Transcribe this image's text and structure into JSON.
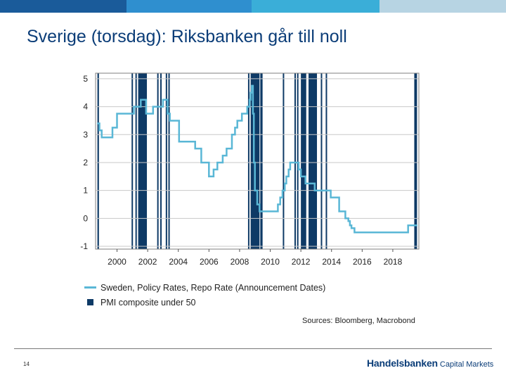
{
  "slide": {
    "title": "Sverige (torsdag): Riksbanken går till noll",
    "page_number": "14",
    "sources": "Sources: Bloomberg, Macrobond",
    "logo_main": "Handelsbanken",
    "logo_sub": "Capital Markets",
    "top_bar_colors": [
      "#1a5b9a",
      "#2f8fcf",
      "#3aaed8",
      "#b7d4e3"
    ]
  },
  "chart_data": {
    "type": "line",
    "title": "",
    "xlabel": "",
    "ylabel": "",
    "xlim": [
      1998.6,
      2019.7
    ],
    "ylim": [
      -1.1,
      5.2
    ],
    "y_ticks": [
      5,
      4,
      3,
      2,
      1,
      0,
      -1
    ],
    "y_tick_labels": [
      "5",
      "4",
      "3",
      "2",
      "1",
      "0",
      "-1"
    ],
    "x_ticks": [
      2000,
      2002,
      2004,
      2006,
      2008,
      2010,
      2012,
      2014,
      2016,
      2018
    ],
    "x_tick_labels": [
      "2000",
      "2002",
      "2004",
      "2006",
      "2008",
      "2010",
      "2012",
      "2014",
      "2016",
      "2018"
    ],
    "grid": true,
    "colors": {
      "line": "#5ab7d6",
      "bars": "#0e3a66",
      "grid": "#c8c8c8"
    },
    "series": [
      {
        "name": "Sweden, Policy Rates, Repo Rate (Announcement Dates)",
        "type": "step",
        "x": [
          1998.7,
          1998.85,
          1999.0,
          1999.7,
          2000.0,
          2000.25,
          2000.5,
          2001.1,
          2001.4,
          2001.55,
          2001.7,
          2001.9,
          2002.2,
          2002.35,
          2003.0,
          2003.15,
          2003.3,
          2003.45,
          2004.05,
          2004.2,
          2005.1,
          2005.5,
          2006.0,
          2006.15,
          2006.3,
          2006.55,
          2006.7,
          2006.9,
          2007.15,
          2007.5,
          2007.7,
          2007.85,
          2008.15,
          2008.5,
          2008.65,
          2008.72,
          2008.8,
          2008.87,
          2008.93,
          2009.0,
          2009.1,
          2009.15,
          2009.3,
          2009.5,
          2010.5,
          2010.65,
          2010.8,
          2010.95,
          2011.05,
          2011.2,
          2011.3,
          2011.45,
          2011.85,
          2012.0,
          2012.15,
          2012.3,
          2012.9,
          2013.1,
          2013.95,
          2014.5,
          2014.9,
          2015.1,
          2015.2,
          2015.3,
          2015.5,
          2019.0,
          2019.6
        ],
        "y": [
          3.4,
          3.15,
          2.9,
          3.25,
          3.75,
          3.75,
          3.75,
          4.0,
          4.0,
          4.25,
          4.25,
          3.75,
          3.75,
          4.0,
          4.25,
          4.25,
          3.75,
          3.5,
          2.75,
          2.75,
          2.5,
          2.0,
          1.5,
          1.5,
          1.75,
          2.0,
          2.0,
          2.25,
          2.5,
          3.0,
          3.25,
          3.5,
          3.75,
          4.0,
          4.25,
          4.5,
          4.75,
          3.75,
          2.0,
          1.0,
          1.0,
          0.5,
          0.25,
          0.25,
          0.5,
          0.75,
          1.0,
          1.25,
          1.5,
          1.75,
          2.0,
          2.0,
          1.75,
          1.5,
          1.5,
          1.25,
          1.0,
          1.0,
          0.75,
          0.25,
          0.0,
          -0.1,
          -0.25,
          -0.35,
          -0.5,
          -0.25,
          -0.25
        ]
      },
      {
        "name": "PMI composite under 50",
        "type": "shaded_periods",
        "periods": [
          [
            1998.72,
            1998.82
          ],
          [
            2000.95,
            2001.02
          ],
          [
            2001.2,
            2001.28
          ],
          [
            2001.38,
            2001.95
          ],
          [
            2002.62,
            2002.66
          ],
          [
            2002.82,
            2002.9
          ],
          [
            2003.18,
            2003.22
          ],
          [
            2003.35,
            2003.42
          ],
          [
            2008.55,
            2008.6
          ],
          [
            2008.72,
            2009.3
          ],
          [
            2009.35,
            2009.5
          ],
          [
            2010.82,
            2010.86
          ],
          [
            2011.58,
            2011.63
          ],
          [
            2011.75,
            2011.82
          ],
          [
            2012.0,
            2012.35
          ],
          [
            2012.5,
            2013.05
          ],
          [
            2013.3,
            2013.36
          ],
          [
            2013.62,
            2013.7
          ],
          [
            2019.4,
            2019.58
          ]
        ]
      }
    ]
  }
}
